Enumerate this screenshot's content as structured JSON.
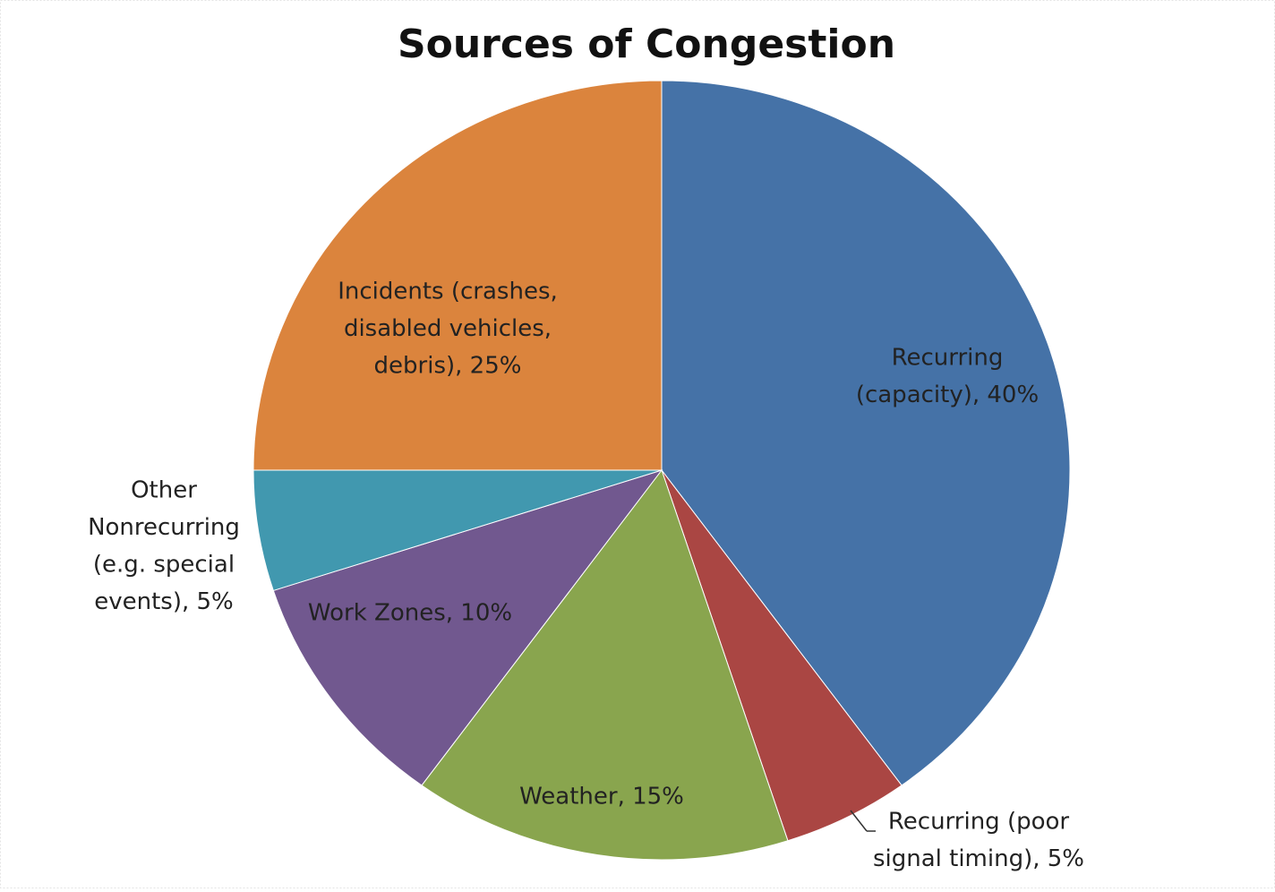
{
  "chart_data": {
    "type": "pie",
    "title": "Sources of Congestion",
    "values": [
      40,
      5,
      15,
      10,
      5,
      25
    ],
    "value_labels": [
      [
        "Recurring",
        "(capacity), 40%"
      ],
      [
        "Recurring (poor",
        "signal timing), 5%"
      ],
      [
        "Weather, 15%"
      ],
      [
        "Work Zones, 10%"
      ],
      [
        "Other",
        "Nonrecurring",
        "(e.g. special",
        "events), 5%"
      ],
      [
        "Incidents (crashes,",
        "disabled vehicles,",
        "debris), 25%"
      ]
    ],
    "colors": [
      "#4572a7",
      "#aa4643",
      "#89a54e",
      "#71588f",
      "#4198af",
      "#db843d"
    ]
  }
}
